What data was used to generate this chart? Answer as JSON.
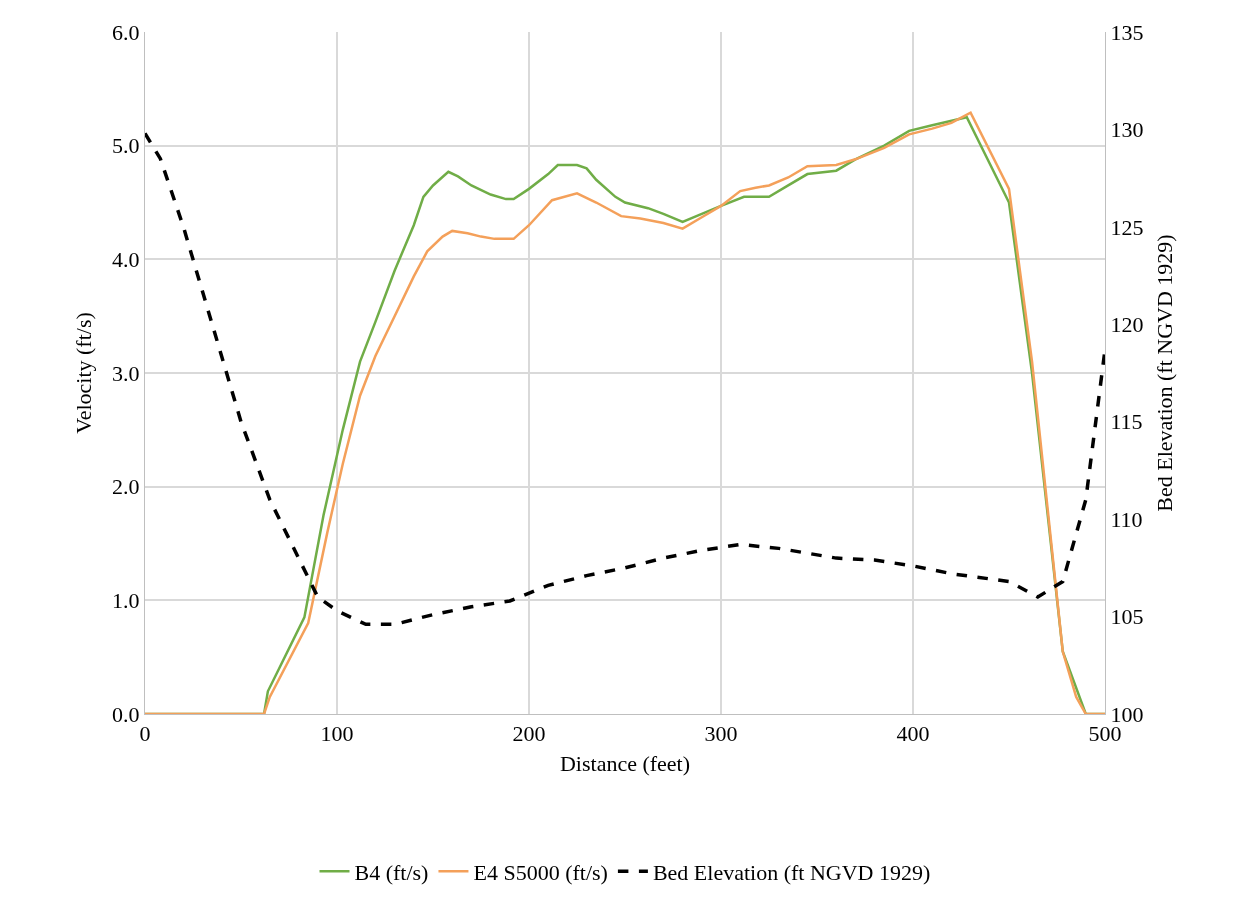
{
  "chart_data": {
    "type": "line",
    "xlabel": "Distance (feet)",
    "ylabel": "Velocity (ft/s)",
    "y2label": "Bed Elevation (ft NGVD 1929)",
    "xlim": [
      0,
      500
    ],
    "xticks": [
      0,
      100,
      200,
      300,
      400,
      500
    ],
    "ylim": [
      0,
      6
    ],
    "yticks": [
      {
        "value": 0,
        "label": "0.0"
      },
      {
        "value": 1,
        "label": "1.0"
      },
      {
        "value": 2,
        "label": "2.0"
      },
      {
        "value": 3,
        "label": "3.0"
      },
      {
        "value": 4,
        "label": "4.0"
      },
      {
        "value": 5,
        "label": "5.0"
      },
      {
        "value": 6,
        "label": "6.0"
      }
    ],
    "y2lim": [
      100,
      135
    ],
    "y2ticks": [
      100,
      105,
      110,
      115,
      120,
      125,
      130,
      135
    ],
    "grid": true,
    "legend": "bottom",
    "marker": "none",
    "series": [
      {
        "name": "B4 (ft/s)",
        "color": "#70ad47",
        "line_style": "solid",
        "x": [
          0,
          62,
          64,
          83,
          93,
          103,
          112,
          120,
          130,
          140,
          145,
          150,
          158,
          163,
          170,
          180,
          188,
          192,
          200,
          210,
          215,
          225,
          230,
          235,
          245,
          250,
          262,
          270,
          280,
          290,
          300,
          312,
          325,
          335,
          345,
          360,
          370,
          385,
          398,
          410,
          428,
          450,
          462,
          478,
          490,
          500
        ],
        "values": [
          0,
          0,
          0.2,
          0.85,
          1.75,
          2.5,
          3.1,
          3.45,
          3.9,
          4.3,
          4.55,
          4.65,
          4.77,
          4.73,
          4.65,
          4.57,
          4.53,
          4.53,
          4.62,
          4.75,
          4.83,
          4.83,
          4.8,
          4.7,
          4.55,
          4.5,
          4.45,
          4.4,
          4.33,
          4.4,
          4.47,
          4.55,
          4.55,
          4.65,
          4.75,
          4.78,
          4.88,
          5.0,
          5.13,
          5.18,
          5.25,
          4.5,
          3.0,
          0.55,
          0,
          0
        ]
      },
      {
        "name": "E4 S5000 (ft/s)",
        "color": "#f4a05a",
        "line_style": "solid",
        "x": [
          0,
          62,
          65,
          85,
          95,
          103,
          112,
          120,
          130,
          140,
          147,
          155,
          160,
          168,
          175,
          182,
          192,
          200,
          212,
          225,
          235,
          248,
          258,
          270,
          280,
          290,
          300,
          310,
          318,
          325,
          335,
          345,
          360,
          370,
          385,
          398,
          410,
          420,
          430,
          450,
          462,
          478,
          485,
          490,
          500
        ],
        "values": [
          0,
          0,
          0.15,
          0.8,
          1.6,
          2.2,
          2.8,
          3.15,
          3.5,
          3.85,
          4.07,
          4.2,
          4.25,
          4.23,
          4.2,
          4.18,
          4.18,
          4.3,
          4.52,
          4.58,
          4.5,
          4.38,
          4.36,
          4.32,
          4.27,
          4.37,
          4.47,
          4.6,
          4.63,
          4.65,
          4.72,
          4.82,
          4.83,
          4.88,
          4.98,
          5.1,
          5.15,
          5.2,
          5.29,
          4.62,
          3.1,
          0.55,
          0.15,
          0,
          0
        ]
      },
      {
        "name": "Bed Elevation (ft NGVD 1929)",
        "color": "#000000",
        "line_style": "dashed",
        "axis": "y2",
        "x": [
          0,
          8,
          20,
          35,
          50,
          65,
          80,
          90,
          100,
          115,
          130,
          150,
          170,
          190,
          210,
          230,
          250,
          270,
          290,
          310,
          330,
          360,
          380,
          400,
          420,
          450,
          465,
          478,
          490,
          500
        ],
        "values": [
          129.8,
          128.5,
          125,
          120,
          115,
          111,
          108,
          106,
          105.3,
          104.6,
          104.6,
          105.1,
          105.5,
          105.8,
          106.6,
          107.1,
          107.5,
          108,
          108.4,
          108.7,
          108.5,
          108,
          107.9,
          107.6,
          107.2,
          106.8,
          106,
          106.8,
          111,
          118.7
        ]
      }
    ]
  }
}
